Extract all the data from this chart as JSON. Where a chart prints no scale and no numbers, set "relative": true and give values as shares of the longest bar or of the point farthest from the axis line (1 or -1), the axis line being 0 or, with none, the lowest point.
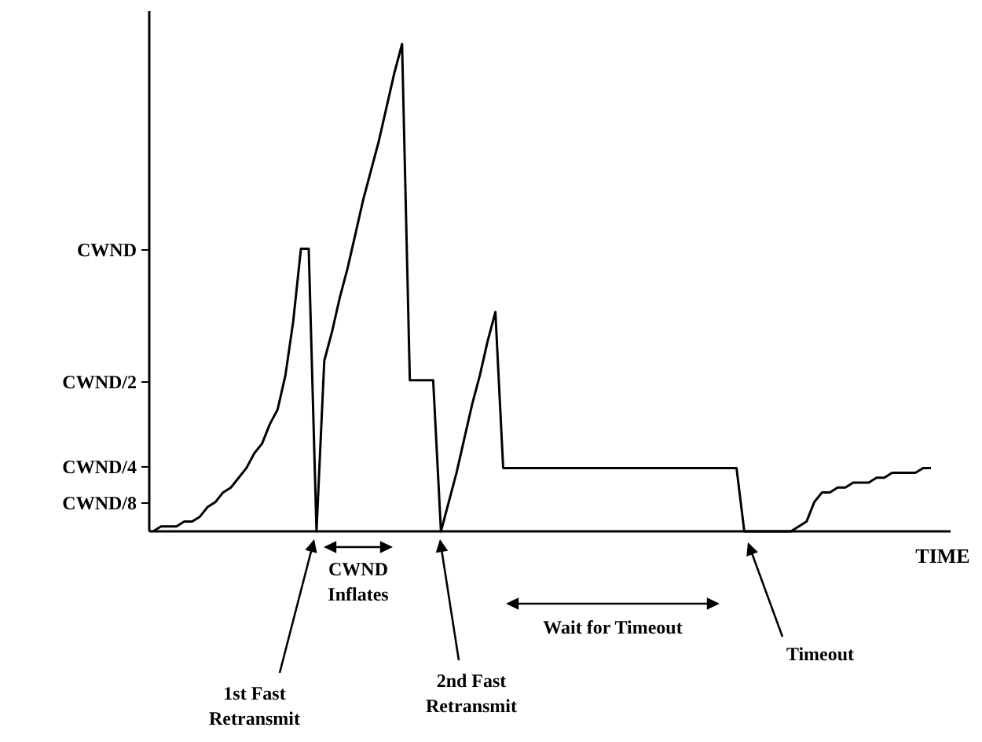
{
  "chart_data": {
    "type": "line",
    "xlabel": "TIME",
    "relative": true,
    "categories": [
      null,
      null,
      null,
      null,
      null,
      null,
      null,
      null,
      null,
      null,
      null,
      null,
      null,
      null,
      null,
      null,
      null,
      null,
      null,
      null,
      null,
      null,
      null,
      null,
      null,
      null,
      null,
      null,
      null,
      null,
      null,
      null,
      null,
      null,
      null,
      null,
      null,
      null,
      null,
      null,
      null,
      null,
      null,
      null,
      null,
      null,
      null,
      null,
      null,
      null,
      null,
      null,
      null,
      null,
      null,
      null,
      null,
      null,
      null,
      null,
      null,
      null,
      null,
      null,
      null,
      null,
      null,
      null,
      null,
      null,
      null,
      null,
      null,
      null,
      null,
      null,
      null,
      null,
      null,
      null,
      null,
      null,
      null,
      null,
      null,
      null,
      null,
      null,
      null,
      null,
      null,
      null,
      null,
      null,
      null,
      null,
      null,
      null,
      null,
      null,
      null
    ],
    "grid": false,
    "marker": "none",
    "line_style": "solid",
    "series": [
      {
        "color": "#000000",
        "values": [
          0,
          0.01,
          0.01,
          0.01,
          0.02,
          0.02,
          0.03,
          0.05,
          0.06,
          0.08,
          0.09,
          0.11,
          0.13,
          0.16,
          0.18,
          0.22,
          0.25,
          0.32,
          0.43,
          0.58,
          0.58,
          0,
          0.35,
          0.41,
          0.48,
          0.54,
          0.61,
          0.68,
          0.74,
          0.8,
          0.87,
          0.94,
          1,
          0.31,
          0.31,
          0.31,
          0.31,
          0,
          0.06,
          0.12,
          0.19,
          0.26,
          0.32,
          0.39,
          0.45,
          0.13,
          0.13,
          0.13,
          0.13,
          0.13,
          0.13,
          0.13,
          0.13,
          0.13,
          0.13,
          0.13,
          0.13,
          0.13,
          0.13,
          0.13,
          0.13,
          0.13,
          0.13,
          0.13,
          0.13,
          0.13,
          0.13,
          0.13,
          0.13,
          0.13,
          0.13,
          0.13,
          0.13,
          0.13,
          0.13,
          0.13,
          0,
          0,
          0,
          0,
          0,
          0,
          0,
          0.01,
          0.02,
          0.06,
          0.08,
          0.08,
          0.09,
          0.09,
          0.1,
          0.1,
          0.1,
          0.11,
          0.11,
          0.12,
          0.12,
          0.12,
          0.12,
          0.13,
          0.13
        ]
      }
    ],
    "annotations": [
      "1st Fast Retransmit",
      "CWND Inflates",
      "2nd Fast Retransmit",
      "Wait for Timeout",
      "Timeout",
      "CWND",
      "CWND/2",
      "CWND/4",
      "CWND/8"
    ]
  }
}
